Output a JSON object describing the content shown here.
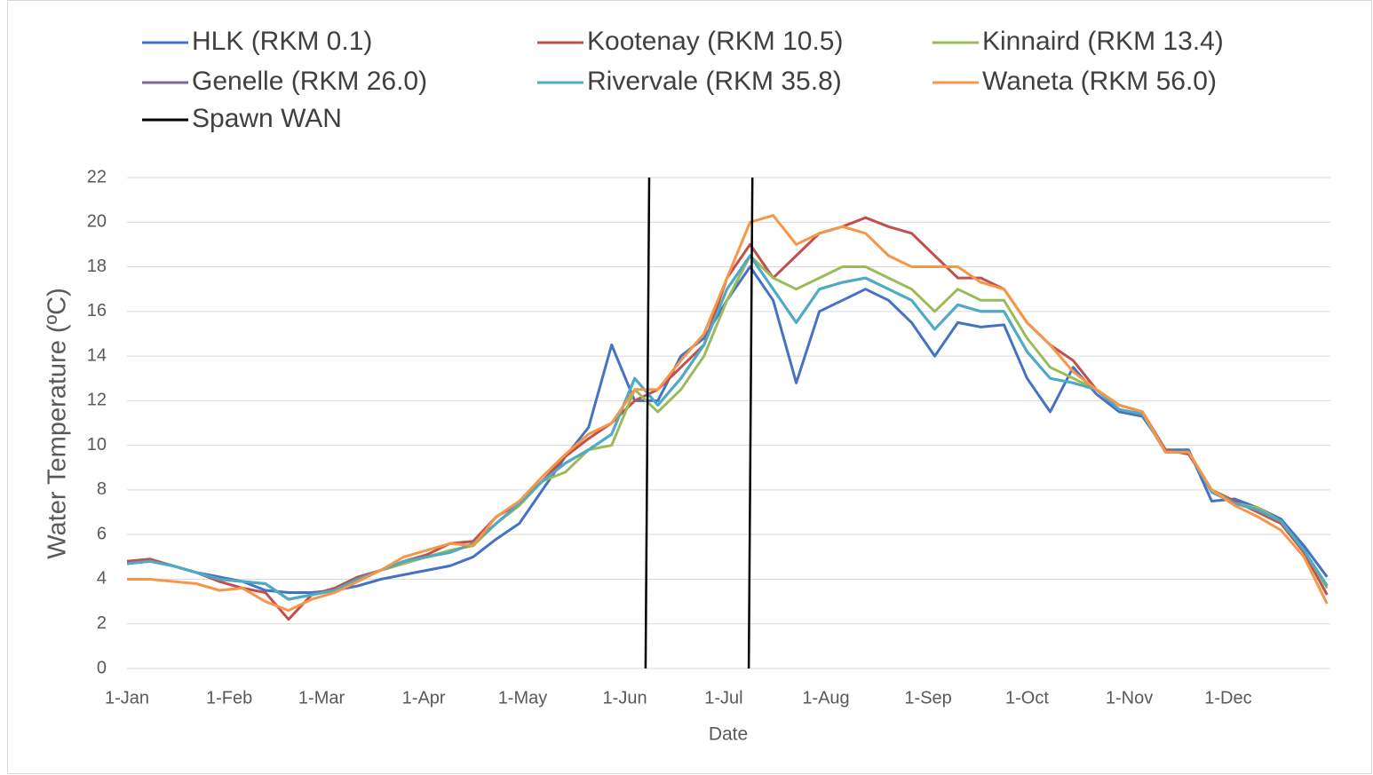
{
  "chart_data": {
    "type": "line",
    "x_label": "Date",
    "y_label": "Water Temperature (ºC)",
    "x": [
      0,
      7,
      14,
      21,
      28,
      35,
      42,
      49,
      56,
      63,
      70,
      77,
      84,
      91,
      98,
      105,
      112,
      119,
      126,
      133,
      140,
      147,
      154,
      161,
      168,
      175,
      182,
      189,
      196,
      203,
      210,
      217,
      224,
      231,
      238,
      245,
      252,
      259,
      266,
      273,
      280,
      287,
      294,
      301,
      308,
      315,
      322,
      329,
      336,
      343,
      350,
      357,
      364
    ],
    "xlim": [
      0,
      365
    ],
    "xticks": [
      {
        "value": 0,
        "label": "1-Jan"
      },
      {
        "value": 31,
        "label": "1-Feb"
      },
      {
        "value": 59,
        "label": "1-Mar"
      },
      {
        "value": 90,
        "label": "1-Apr"
      },
      {
        "value": 120,
        "label": "1-May"
      },
      {
        "value": 151,
        "label": "1-Jun"
      },
      {
        "value": 181,
        "label": "1-Jul"
      },
      {
        "value": 212,
        "label": "1-Aug"
      },
      {
        "value": 243,
        "label": "1-Sep"
      },
      {
        "value": 273,
        "label": "1-Oct"
      },
      {
        "value": 304,
        "label": "1-Nov"
      },
      {
        "value": 334,
        "label": "1-Dec"
      }
    ],
    "ylim": [
      0,
      22
    ],
    "yticks": [
      0,
      2,
      4,
      6,
      8,
      10,
      12,
      14,
      16,
      18,
      20,
      22
    ],
    "grid": true,
    "series": [
      {
        "name": "HLK (RKM 0.1)",
        "color": "#4472c4",
        "values": [
          4.7,
          4.8,
          4.6,
          4.3,
          4.1,
          3.9,
          3.5,
          3.4,
          3.4,
          3.5,
          3.7,
          4.0,
          4.2,
          4.4,
          4.6,
          5.0,
          5.8,
          6.5,
          8.0,
          9.5,
          10.8,
          14.5,
          12.0,
          12.0,
          14.0,
          14.8,
          16.5,
          18.0,
          16.5,
          12.8,
          16.0,
          16.5,
          17.0,
          16.5,
          15.5,
          14.0,
          15.5,
          15.3,
          15.4,
          13.0,
          11.5,
          13.5,
          12.3,
          11.5,
          11.3,
          9.8,
          9.8,
          7.5,
          7.6,
          7.2,
          6.7,
          5.5,
          4.1
        ]
      },
      {
        "name": "Kootenay (RKM 10.5)",
        "color": "#c0504d",
        "values": [
          4.8,
          4.9,
          4.6,
          4.3,
          3.9,
          3.6,
          3.4,
          2.2,
          3.3,
          3.6,
          4.1,
          4.4,
          4.8,
          5.1,
          5.6,
          5.7,
          6.8,
          7.4,
          8.4,
          9.5,
          10.3,
          11.0,
          12.0,
          12.5,
          13.5,
          14.5,
          17.5,
          19.0,
          17.5,
          18.5,
          19.5,
          19.8,
          20.2,
          19.8,
          19.5,
          18.5,
          17.5,
          17.5,
          17.0,
          15.5,
          14.5,
          13.8,
          12.5,
          11.8,
          11.5,
          9.8,
          9.6,
          8.0,
          7.5,
          7.0,
          6.5,
          5.2,
          3.3
        ]
      },
      {
        "name": "Kinnaird (RKM 13.4)",
        "color": "#9bbb59",
        "values": [
          4.7,
          4.8,
          4.6,
          4.3,
          4.0,
          3.9,
          3.8,
          3.1,
          3.3,
          3.5,
          4.0,
          4.4,
          4.7,
          5.0,
          5.3,
          5.5,
          6.5,
          7.3,
          8.4,
          8.8,
          9.8,
          10.0,
          12.5,
          11.5,
          12.5,
          14.0,
          16.5,
          18.5,
          17.5,
          17.0,
          17.5,
          18.0,
          18.0,
          17.5,
          17.0,
          16.0,
          17.0,
          16.5,
          16.5,
          14.8,
          13.5,
          13.0,
          12.5,
          11.8,
          11.5,
          9.7,
          9.7,
          8.0,
          7.4,
          7.2,
          6.6,
          5.3,
          3.6
        ]
      },
      {
        "name": "Genelle (RKM 26.0)",
        "color": "#8064a2",
        "values": [
          4.7,
          4.8,
          4.6,
          4.3,
          4.0,
          3.9,
          3.8,
          3.1,
          3.3,
          3.5,
          4.0,
          4.4,
          4.8,
          5.0,
          5.2,
          5.6,
          6.5,
          7.4,
          8.4,
          9.2,
          9.8,
          10.5,
          13.0,
          11.8,
          13.0,
          14.5,
          17.0,
          18.5,
          17.0,
          15.5,
          17.0,
          17.3,
          17.5,
          17.0,
          16.5,
          15.2,
          16.3,
          16.0,
          16.0,
          14.2,
          13.0,
          12.8,
          12.5,
          11.6,
          11.4,
          9.7,
          9.7,
          7.9,
          7.4,
          7.1,
          6.6,
          5.3,
          3.7
        ]
      },
      {
        "name": "Rivervale (RKM 35.8)",
        "color": "#4bacc6",
        "values": [
          4.7,
          4.8,
          4.6,
          4.3,
          4.0,
          3.9,
          3.8,
          3.1,
          3.3,
          3.5,
          4.0,
          4.4,
          4.8,
          5.0,
          5.2,
          5.6,
          6.5,
          7.4,
          8.4,
          9.2,
          9.8,
          10.5,
          13.0,
          11.8,
          13.0,
          14.5,
          17.0,
          18.5,
          17.0,
          15.5,
          17.0,
          17.3,
          17.5,
          17.0,
          16.5,
          15.2,
          16.3,
          16.0,
          16.0,
          14.2,
          13.0,
          12.8,
          12.5,
          11.6,
          11.4,
          9.7,
          9.7,
          7.9,
          7.4,
          7.1,
          6.6,
          5.3,
          3.7
        ]
      },
      {
        "name": "Waneta (RKM 56.0)",
        "color": "#f79646",
        "values": [
          4.0,
          4.0,
          3.9,
          3.8,
          3.5,
          3.6,
          3.0,
          2.6,
          3.1,
          3.4,
          3.9,
          4.4,
          5.0,
          5.3,
          5.6,
          5.5,
          6.8,
          7.5,
          8.6,
          9.6,
          10.5,
          11.0,
          12.5,
          12.5,
          13.8,
          15.0,
          17.5,
          20.0,
          20.3,
          19.0,
          19.5,
          19.8,
          19.5,
          18.5,
          18.0,
          18.0,
          18.0,
          17.3,
          17.0,
          15.5,
          14.5,
          13.3,
          12.5,
          11.8,
          11.5,
          9.7,
          9.7,
          8.0,
          7.3,
          6.8,
          6.2,
          5.0,
          2.9
        ]
      },
      {
        "name": "Spawn WAN",
        "color": "#000000",
        "x": [
          158.4,
          157.3,
          null,
          189.7,
          188.6
        ],
        "values": [
          22,
          0,
          null,
          22,
          0
        ]
      }
    ]
  }
}
